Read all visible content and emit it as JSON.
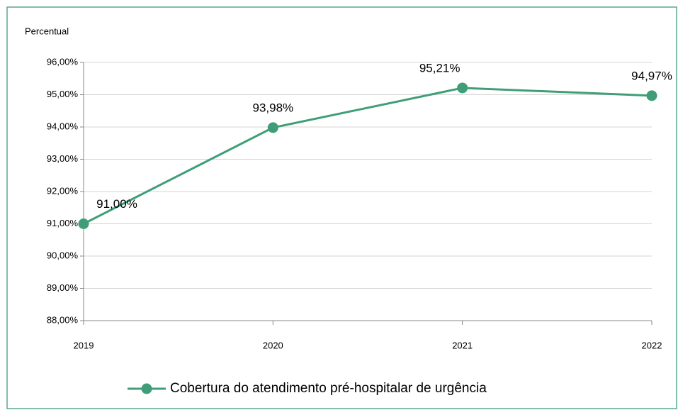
{
  "chart_data": {
    "type": "line",
    "y_axis_label": "Percentual",
    "categories": [
      "2019",
      "2020",
      "2021",
      "2022"
    ],
    "series": [
      {
        "name": "Cobertura do atendimento pré-hospitalar de urgência",
        "color": "#3f9e78",
        "values": [
          91.0,
          93.98,
          95.21,
          94.97
        ],
        "value_labels": [
          "91,00%",
          "93,98%",
          "95,21%",
          "94,97%"
        ]
      }
    ],
    "ylim": [
      88,
      96
    ],
    "yticks": [
      {
        "value": 88,
        "label": "88,00%"
      },
      {
        "value": 89,
        "label": "89,00%"
      },
      {
        "value": 90,
        "label": "90,00%"
      },
      {
        "value": 91,
        "label": "91,00%"
      },
      {
        "value": 92,
        "label": "92,00%"
      },
      {
        "value": 93,
        "label": "93,00%"
      },
      {
        "value": 94,
        "label": "94,00%"
      },
      {
        "value": 95,
        "label": "95,00%"
      },
      {
        "value": 96,
        "label": "96,00%"
      }
    ],
    "grid": true,
    "legend": "bottom"
  }
}
